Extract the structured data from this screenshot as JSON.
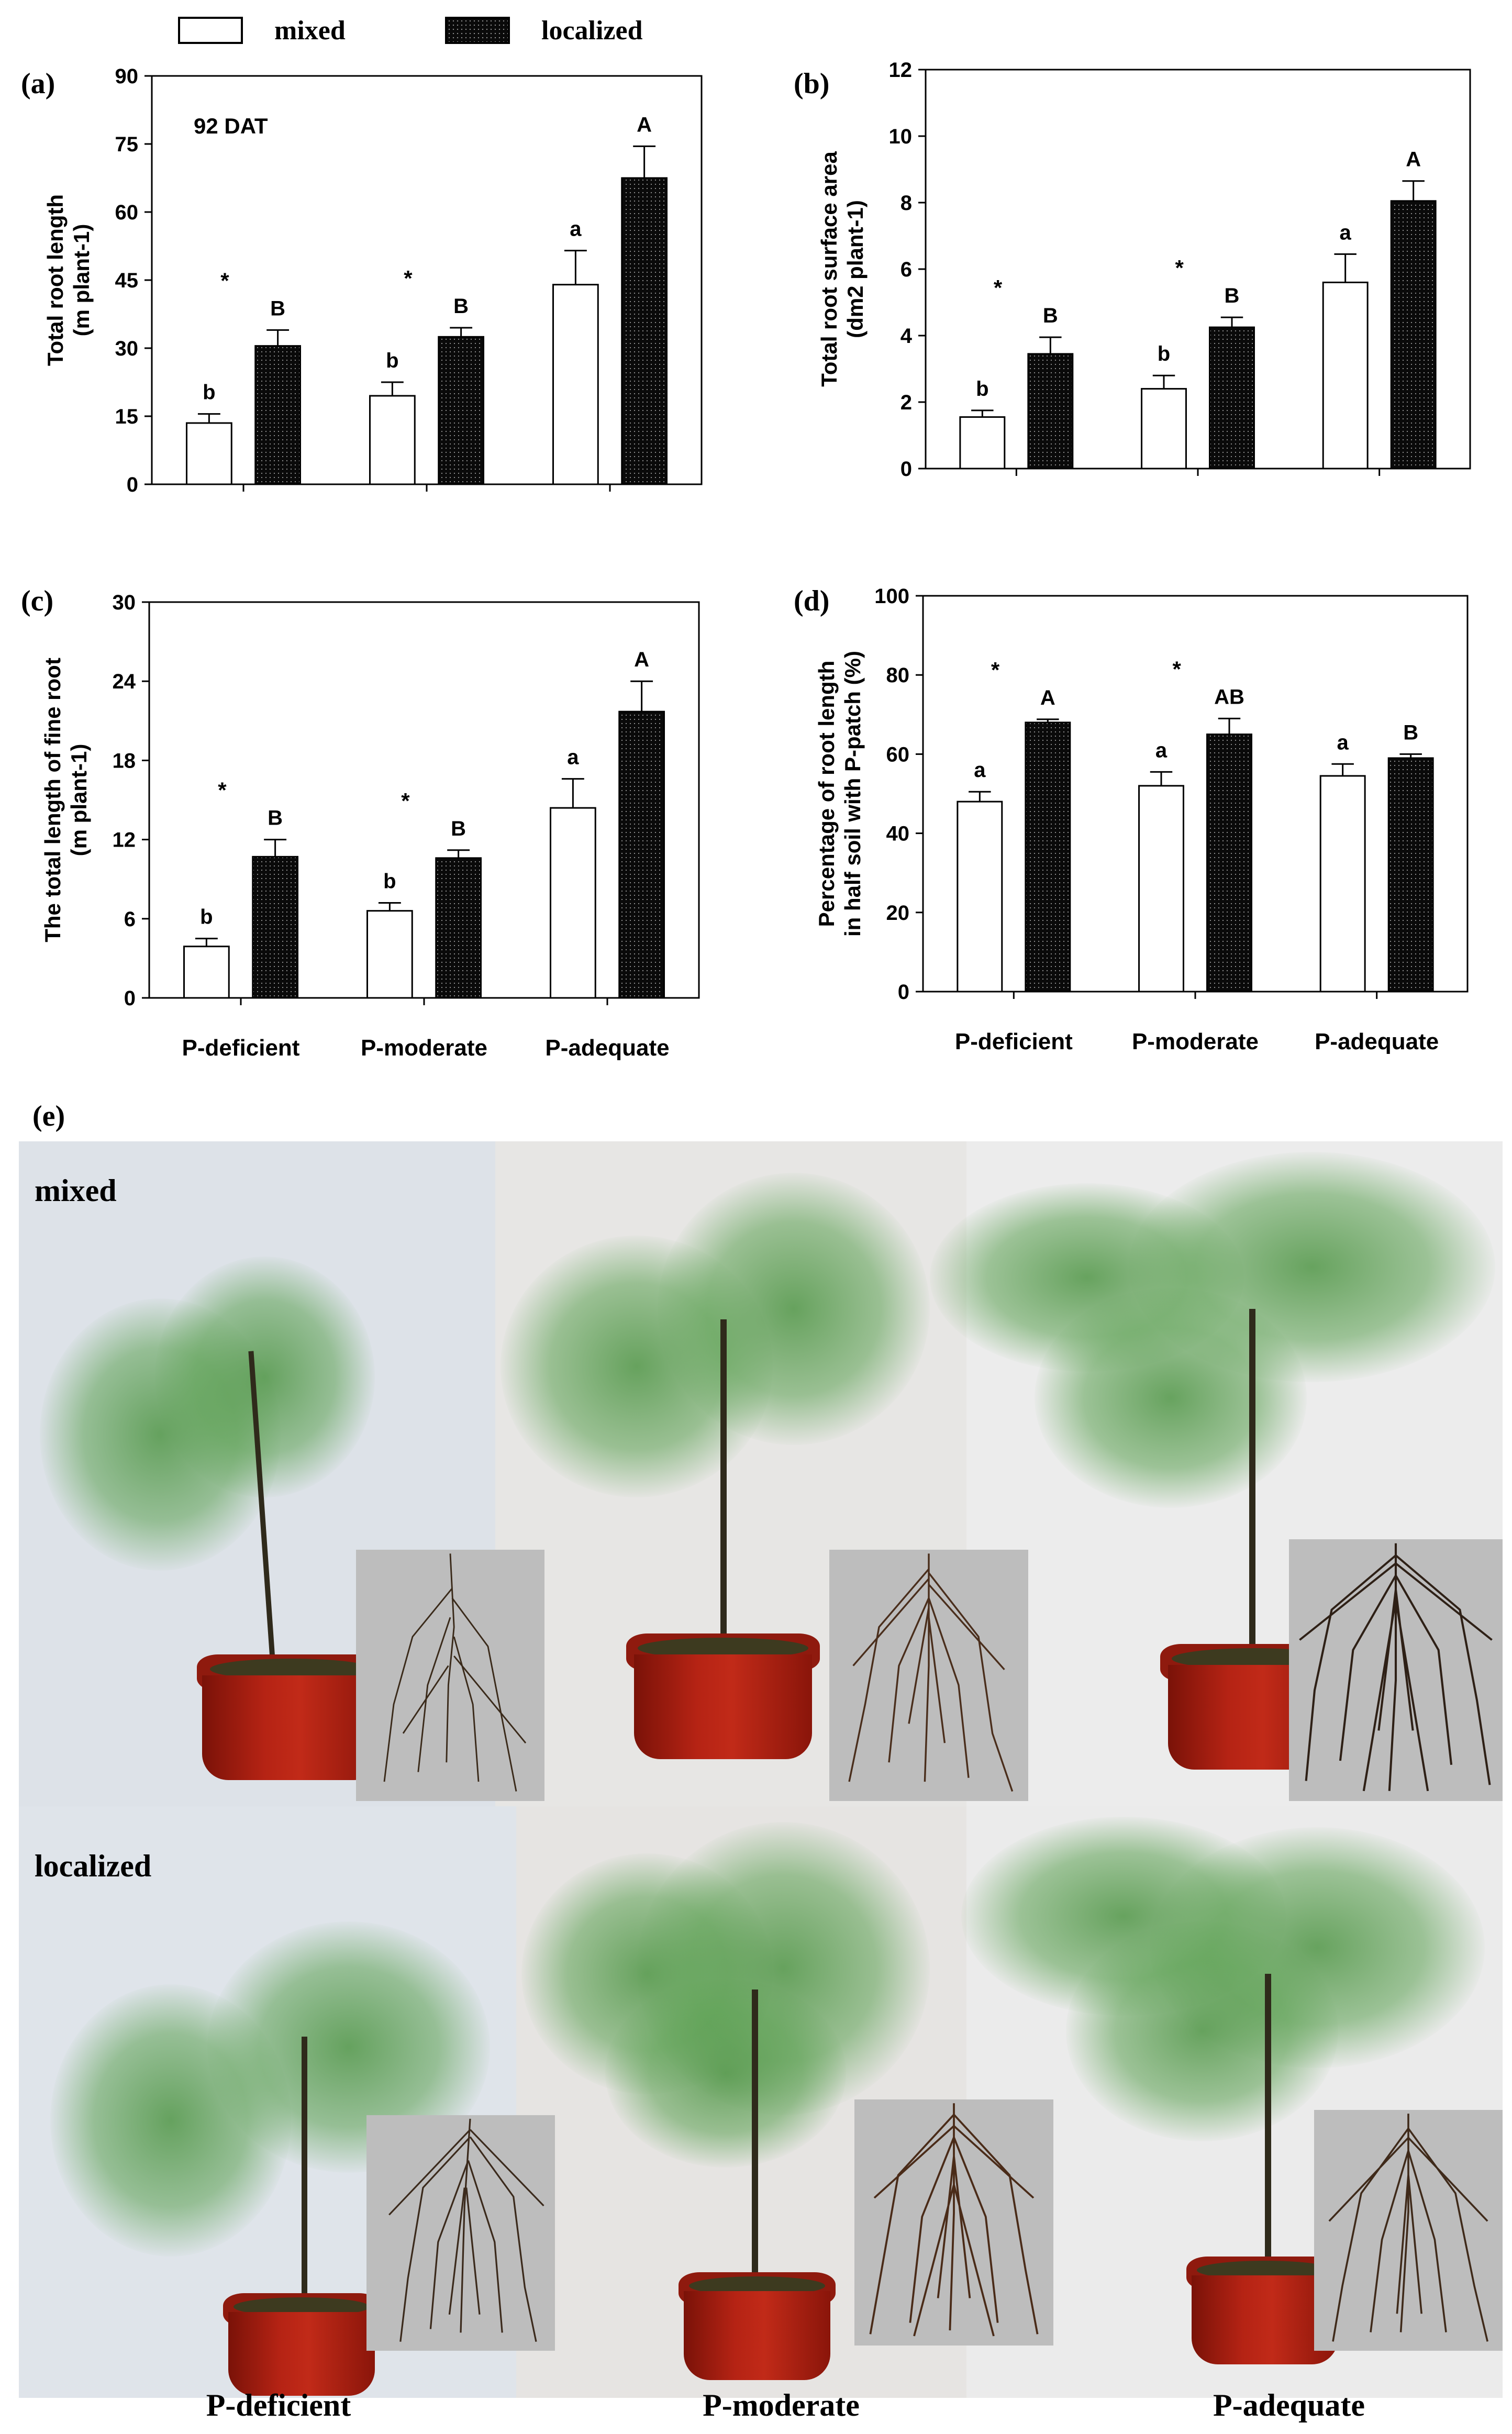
{
  "legend": {
    "mixed": "mixed",
    "localized": "localized"
  },
  "colors": {
    "mixed_fill": "#ffffff",
    "localized_fill": "#0a0a0a",
    "axis": "#000000"
  },
  "chart_data": [
    {
      "id": "a",
      "letter": "(a)",
      "type": "bar",
      "annotation": "92 DAT",
      "ylabel_line1": "Total root length",
      "ylabel_line2": "(m plant-1)",
      "ylim": [
        0,
        90
      ],
      "yticks": [
        0,
        15,
        30,
        45,
        60,
        75,
        90
      ],
      "categories": [
        "P-deficient",
        "P-moderate",
        "P-adequate"
      ],
      "show_xlabels": false,
      "series": [
        {
          "name": "mixed",
          "values": [
            13.5,
            19.5,
            44
          ],
          "errors": [
            2,
            3,
            7.5
          ],
          "letters": [
            "b",
            "b",
            "a"
          ]
        },
        {
          "name": "localized",
          "values": [
            30.5,
            32.5,
            67.5
          ],
          "errors": [
            3.5,
            2,
            7
          ],
          "letters": [
            "B",
            "B",
            "A"
          ]
        }
      ],
      "stars": [
        "*",
        "*",
        ""
      ]
    },
    {
      "id": "b",
      "letter": "(b)",
      "type": "bar",
      "annotation": "",
      "ylabel_line1": "Total root surface area",
      "ylabel_line2": "(dm2 plant-1)",
      "ylim": [
        0,
        12
      ],
      "yticks": [
        0,
        2,
        4,
        6,
        8,
        10,
        12
      ],
      "categories": [
        "P-deficient",
        "P-moderate",
        "P-adequate"
      ],
      "show_xlabels": false,
      "series": [
        {
          "name": "mixed",
          "values": [
            1.55,
            2.4,
            5.6
          ],
          "errors": [
            0.2,
            0.4,
            0.85
          ],
          "letters": [
            "b",
            "b",
            "a"
          ]
        },
        {
          "name": "localized",
          "values": [
            3.45,
            4.25,
            8.05
          ],
          "errors": [
            0.5,
            0.3,
            0.6
          ],
          "letters": [
            "B",
            "B",
            "A"
          ]
        }
      ],
      "stars": [
        "*",
        "*",
        ""
      ]
    },
    {
      "id": "c",
      "letter": "(c)",
      "type": "bar",
      "annotation": "",
      "ylabel_line1": "The total length of fine root",
      "ylabel_line2": "(m plant-1)",
      "ylim": [
        0,
        30
      ],
      "yticks": [
        0,
        6,
        12,
        18,
        24,
        30
      ],
      "categories": [
        "P-deficient",
        "P-moderate",
        "P-adequate"
      ],
      "show_xlabels": true,
      "series": [
        {
          "name": "mixed",
          "values": [
            3.9,
            6.6,
            14.4
          ],
          "errors": [
            0.6,
            0.6,
            2.2
          ],
          "letters": [
            "b",
            "b",
            "a"
          ]
        },
        {
          "name": "localized",
          "values": [
            10.7,
            10.6,
            21.7
          ],
          "errors": [
            1.3,
            0.6,
            2.3
          ],
          "letters": [
            "B",
            "B",
            "A"
          ]
        }
      ],
      "stars": [
        "*",
        "*",
        ""
      ]
    },
    {
      "id": "d",
      "letter": "(d)",
      "type": "bar",
      "annotation": "",
      "ylabel_line1": "Percentage of root length",
      "ylabel_line2": "in half soil with P-patch (%)",
      "ylim": [
        0,
        100
      ],
      "yticks": [
        0,
        20,
        40,
        60,
        80,
        100
      ],
      "categories": [
        "P-deficient",
        "P-moderate",
        "P-adequate"
      ],
      "show_xlabels": true,
      "series": [
        {
          "name": "mixed",
          "values": [
            48,
            52,
            54.5
          ],
          "errors": [
            2.5,
            3.5,
            3
          ],
          "letters": [
            "a",
            "a",
            "a"
          ]
        },
        {
          "name": "localized",
          "values": [
            68,
            65,
            59
          ],
          "errors": [
            0.8,
            4,
            1
          ],
          "letters": [
            "A",
            "AB",
            "B"
          ]
        }
      ],
      "stars": [
        "*",
        "*",
        ""
      ]
    }
  ],
  "photos": {
    "letter": "(e)",
    "row_labels": [
      "mixed",
      "localized"
    ],
    "treatments": [
      "P-deficient",
      "P-moderate",
      "P-adequate"
    ]
  }
}
